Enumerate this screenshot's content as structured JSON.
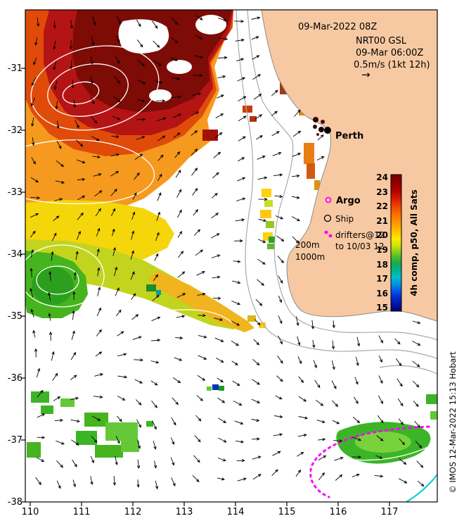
{
  "figure": {
    "header": {
      "obs_time": "09-Mar-2022 08Z",
      "model_name": "NRT00 GSL",
      "model_time": "09-Mar 06:00Z",
      "vector_scale": "0.5m/s (1kt 12h)"
    },
    "icons": {
      "scale_arrow": "→"
    },
    "places": {
      "perth": "Perth"
    },
    "legend": {
      "argo": "Argo",
      "ship": "Ship",
      "drifters_line1": "drifters@12",
      "drifters_line2": "to 10/03 12"
    },
    "isobaths": {
      "d200": "200m",
      "d1000": "1000m"
    },
    "colorbar": {
      "label": "4h comp, p50, All Sats",
      "ticks": [
        "24",
        "23",
        "22",
        "21",
        "20",
        "19",
        "18",
        "17",
        "16",
        "15"
      ]
    },
    "axes": {
      "x": [
        "110",
        "111",
        "112",
        "113",
        "114",
        "115",
        "116",
        "117"
      ],
      "y": [
        "-31",
        "-32",
        "-33",
        "-34",
        "-35",
        "-36",
        "-37",
        "-38"
      ]
    },
    "credit": "© IMOS 12-Mar-2022 15:13 Hobart",
    "palette": {
      "land": "#f7c9a2",
      "ocean": "#ffffff",
      "sst_warmest": "#7d0b06",
      "drifter_track": "#ff00ff"
    }
  }
}
